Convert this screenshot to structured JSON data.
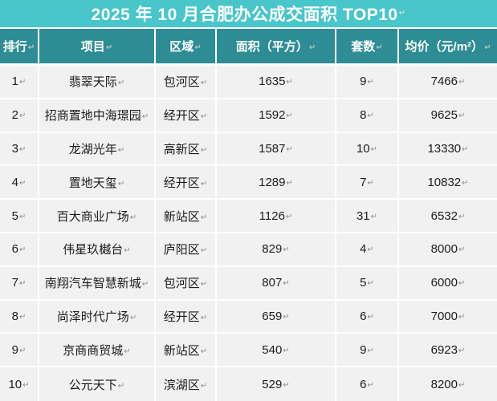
{
  "title": {
    "text": "2025 年 10 月合肥办公成交面积 TOP10"
  },
  "formatting": {
    "paragraph_mark": "↵"
  },
  "colors": {
    "title_bar": "#48C6CA",
    "header_row": "#2D8C94",
    "body_cell": "#F1F1F1",
    "divider": "#FFFFFF",
    "body_text": "#1C1C1C",
    "paragraph_mark": "#8C8C8C"
  },
  "table": {
    "headers": [
      {
        "key": "rank",
        "label": "排行"
      },
      {
        "key": "project",
        "label": "项目"
      },
      {
        "key": "district",
        "label": "区域"
      },
      {
        "key": "area",
        "label": "面积（平方）"
      },
      {
        "key": "units",
        "label": "套数"
      },
      {
        "key": "price",
        "label": "均价（元/m²）"
      }
    ],
    "rows": [
      {
        "rank": "1",
        "project": "翡翠天际",
        "district": "包河区",
        "area": "1635",
        "units": "9",
        "price": "7466"
      },
      {
        "rank": "2",
        "project": "招商置地中海璟园",
        "district": "经开区",
        "area": "1592",
        "units": "8",
        "price": "9625"
      },
      {
        "rank": "3",
        "project": "龙湖光年",
        "district": "高新区",
        "area": "1587",
        "units": "10",
        "price": "13330"
      },
      {
        "rank": "4",
        "project": "置地天玺",
        "district": "经开区",
        "area": "1289",
        "units": "7",
        "price": "10832"
      },
      {
        "rank": "5",
        "project": "百大商业广场",
        "district": "新站区",
        "area": "1126",
        "units": "31",
        "price": "6532"
      },
      {
        "rank": "6",
        "project": "伟星玖樾台",
        "district": "庐阳区",
        "area": "829",
        "units": "4",
        "price": "8000"
      },
      {
        "rank": "7",
        "project": "南翔汽车智慧新城",
        "district": "包河区",
        "area": "807",
        "units": "5",
        "price": "6000"
      },
      {
        "rank": "8",
        "project": "尚泽时代广场",
        "district": "经开区",
        "area": "659",
        "units": "6",
        "price": "7000"
      },
      {
        "rank": "9",
        "project": "京商商贸城",
        "district": "新站区",
        "area": "540",
        "units": "9",
        "price": "6923"
      },
      {
        "rank": "10",
        "project": "公元天下",
        "district": "滨湖区",
        "area": "529",
        "units": "6",
        "price": "8200"
      }
    ]
  }
}
